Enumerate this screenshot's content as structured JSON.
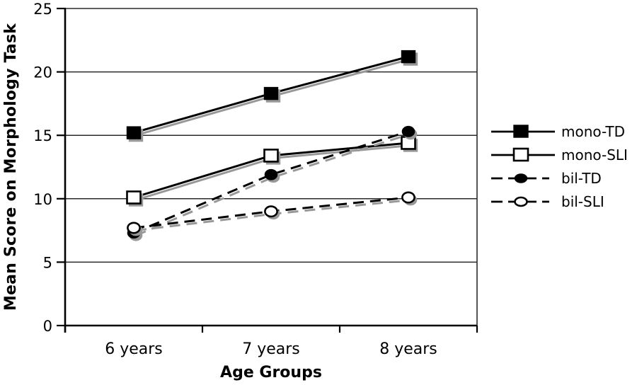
{
  "colors": {
    "ink": "#000000",
    "shadow": "#989898",
    "open_fill": "#ffffff",
    "background": "#ffffff"
  },
  "chart_data": {
    "type": "line",
    "title": "",
    "xlabel": "Age Groups",
    "ylabel": "Mean Score on Morphology Task",
    "categories": [
      "6 years",
      "7 years",
      "8 years"
    ],
    "ylim": [
      0,
      25
    ],
    "yticks": [
      0,
      5,
      10,
      15,
      20,
      25
    ],
    "grid": true,
    "legend_position": "right",
    "series": [
      {
        "name": "mono-TD",
        "values": [
          15.2,
          18.3,
          21.2
        ],
        "line_style": "solid",
        "marker": "square",
        "marker_fill": "filled"
      },
      {
        "name": "mono-SLI",
        "values": [
          10.1,
          13.4,
          14.4
        ],
        "line_style": "solid",
        "marker": "square",
        "marker_fill": "open"
      },
      {
        "name": "bil-TD",
        "values": [
          7.3,
          11.9,
          15.3
        ],
        "line_style": "dashed",
        "marker": "circle",
        "marker_fill": "filled"
      },
      {
        "name": "bil-SLI",
        "values": [
          7.7,
          9.0,
          10.1
        ],
        "line_style": "dashed",
        "marker": "circle",
        "marker_fill": "open"
      }
    ]
  }
}
